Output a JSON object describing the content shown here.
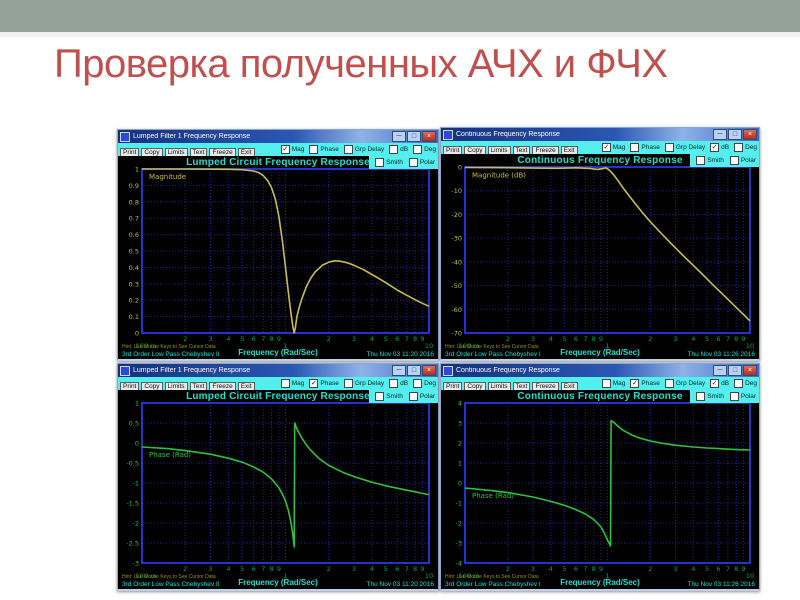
{
  "slide": {
    "title": "Проверка полученных АЧХ и ФЧХ",
    "header_color": "#93a299",
    "title_color": "#c0504d"
  },
  "toolbar_buttons": [
    "Print",
    "Copy",
    "Limits",
    "Text",
    "Freeze",
    "Exit"
  ],
  "checkbox_row1": [
    "Mag",
    "Phase",
    "Grp Delay",
    "dB",
    "Deg"
  ],
  "checkbox_row2": [
    "Smith",
    "Polar"
  ],
  "hint": "Hint: Use Mouse Keys to See Cursor Data",
  "xlabel": "Frequency (Rad/Sec)",
  "x_minor_labels": [
    "2",
    "3",
    "4",
    "5",
    "6",
    "7",
    "8",
    "9"
  ],
  "x_major_labels": [
    "100 m",
    "1",
    "10"
  ],
  "colors": {
    "magnitude_trace": "#c9bd4e",
    "phase_trace": "#2ec13a",
    "axis_text": "#00a844",
    "cyan_text": "#1ee0cd",
    "toolbar_bg": "#55eeee",
    "plot_border": "#2233d4",
    "grid": "#2020a8"
  },
  "windows": [
    {
      "window_title": "Lumped Filter 1 Frequency Response",
      "chart_title": "Lumped Circuit Frequency Response",
      "checked": [
        "Mag"
      ],
      "caption": "3rd Order Low Pass Chebyshev II",
      "timestamp": "Thu Nov 03 11:20 2016"
    },
    {
      "window_title": "Continuous Frequency Response",
      "chart_title": "Continuous Frequency Response",
      "checked": [
        "Mag",
        "dB"
      ],
      "caption": "3rd Order Low Pass Chebyshev I",
      "timestamp": "Thu Nov 03 11:26 2016"
    },
    {
      "window_title": "Lumped Filter 1 Frequency Response",
      "chart_title": "Lumped Circuit Frequency Response",
      "checked": [
        "Phase"
      ],
      "caption": "3rd Order Low Pass Chebyshev II",
      "timestamp": "Thu Nov 03 11:20 2016"
    },
    {
      "window_title": "Continuous Frequency Response",
      "chart_title": "Continuous Frequency Response",
      "checked": [
        "Phase",
        "dB"
      ],
      "caption": "3rd Order Low Pass Chebyshev I",
      "timestamp": "Thu Nov 03 11:26 2016"
    }
  ],
  "chart_data": [
    {
      "type": "line",
      "title": "Lumped Circuit Frequency Response",
      "xlabel": "Frequency (Rad/Sec)",
      "xscale": "log",
      "xlim": [
        0.1,
        10
      ],
      "ylim": [
        0,
        1
      ],
      "yticks": [
        1,
        0.9,
        0.8,
        0.7,
        0.6,
        0.5,
        0.4,
        0.3,
        0.2,
        0.1,
        0
      ],
      "ytick_labels": [
        "1",
        "0.9",
        "0.8",
        "0.7",
        "0.6",
        "0.5",
        "0.4",
        "0.3",
        "0.2",
        "0.1",
        "0"
      ],
      "grid": true,
      "series": [
        {
          "name": "Magnitude",
          "color": "#c9bd4e",
          "points": [
            [
              0.1,
              1
            ],
            [
              0.2,
              1
            ],
            [
              0.3,
              0.999
            ],
            [
              0.4,
              0.998
            ],
            [
              0.5,
              0.996
            ],
            [
              0.6,
              0.988
            ],
            [
              0.65,
              0.978
            ],
            [
              0.7,
              0.96
            ],
            [
              0.75,
              0.93
            ],
            [
              0.8,
              0.885
            ],
            [
              0.85,
              0.815
            ],
            [
              0.9,
              0.71
            ],
            [
              0.95,
              0.565
            ],
            [
              1,
              0.4
            ],
            [
              1.05,
              0.24
            ],
            [
              1.1,
              0.1
            ],
            [
              1.13,
              0.03
            ],
            [
              1.15,
              0
            ],
            [
              1.17,
              0.03
            ],
            [
              1.2,
              0.1
            ],
            [
              1.25,
              0.16
            ],
            [
              1.3,
              0.21
            ],
            [
              1.4,
              0.285
            ],
            [
              1.5,
              0.335
            ],
            [
              1.6,
              0.37
            ],
            [
              1.8,
              0.412
            ],
            [
              2,
              0.432
            ],
            [
              2.2,
              0.44
            ],
            [
              2.4,
              0.438
            ],
            [
              2.7,
              0.428
            ],
            [
              3,
              0.413
            ],
            [
              3.5,
              0.386
            ],
            [
              4,
              0.357
            ],
            [
              4.5,
              0.331
            ],
            [
              5,
              0.307
            ],
            [
              6,
              0.262
            ],
            [
              7,
              0.23
            ],
            [
              8,
              0.203
            ],
            [
              9,
              0.181
            ],
            [
              10,
              0.163
            ]
          ]
        }
      ]
    },
    {
      "type": "line",
      "title": "Continuous Frequency Response",
      "xlabel": "Frequency (Rad/Sec)",
      "xscale": "log",
      "xlim": [
        0.1,
        10
      ],
      "ylim": [
        -70,
        0
      ],
      "yticks": [
        0,
        -10,
        -20,
        -30,
        -40,
        -50,
        -60,
        -70
      ],
      "ytick_labels": [
        "0",
        "-10",
        "-20",
        "-30",
        "-40",
        "-50",
        "-60",
        "-70"
      ],
      "grid": true,
      "series": [
        {
          "name": "Magnitude (dB)",
          "color": "#c9bd4e",
          "points": [
            [
              0.1,
              -0.2
            ],
            [
              0.2,
              -0.3
            ],
            [
              0.3,
              -0.45
            ],
            [
              0.45,
              -0.55
            ],
            [
              0.6,
              -0.35
            ],
            [
              0.75,
              -0.6
            ],
            [
              0.85,
              -1
            ],
            [
              0.92,
              -0.7
            ],
            [
              0.97,
              -0.4
            ],
            [
              1,
              -0.7
            ],
            [
              1.05,
              -1.8
            ],
            [
              1.1,
              -3.1
            ],
            [
              1.2,
              -6.2
            ],
            [
              1.3,
              -9.2
            ],
            [
              1.45,
              -12.9
            ],
            [
              1.6,
              -16.2
            ],
            [
              1.8,
              -20
            ],
            [
              2,
              -23.1
            ],
            [
              2.3,
              -27
            ],
            [
              2.6,
              -30.3
            ],
            [
              3,
              -34.1
            ],
            [
              3.5,
              -38.1
            ],
            [
              4,
              -41.5
            ],
            [
              4.5,
              -44.5
            ],
            [
              5,
              -47.2
            ],
            [
              5.5,
              -49.7
            ],
            [
              6,
              -51.9
            ],
            [
              7,
              -55.8
            ],
            [
              8,
              -59.2
            ],
            [
              9,
              -62.2
            ],
            [
              10,
              -64.9
            ]
          ]
        }
      ]
    },
    {
      "type": "line",
      "title": "Lumped Circuit Frequency Response",
      "xlabel": "Frequency (Rad/Sec)",
      "xscale": "log",
      "xlim": [
        0.1,
        10
      ],
      "ylim": [
        -3,
        1
      ],
      "yticks": [
        1,
        0.5,
        0,
        -0.5,
        -1,
        -1.5,
        -2,
        -2.5,
        -3
      ],
      "ytick_labels": [
        "1",
        "0.5",
        "0",
        "-0.5",
        "-1",
        "-1.5",
        "-2",
        "-2.5",
        "-3"
      ],
      "grid": true,
      "series": [
        {
          "name": "Phase (Rad)",
          "color": "#2ec13a",
          "points": [
            [
              0.1,
              -0.1
            ],
            [
              0.15,
              -0.14
            ],
            [
              0.2,
              -0.19
            ],
            [
              0.3,
              -0.28
            ],
            [
              0.4,
              -0.38
            ],
            [
              0.5,
              -0.48
            ],
            [
              0.6,
              -0.6
            ],
            [
              0.7,
              -0.73
            ],
            [
              0.8,
              -0.9
            ],
            [
              0.9,
              -1.12
            ],
            [
              0.95,
              -1.27
            ],
            [
              1,
              -1.45
            ],
            [
              1.05,
              -1.7
            ],
            [
              1.1,
              -2.05
            ],
            [
              1.13,
              -2.35
            ],
            [
              1.15,
              -2.6
            ],
            [
              1.16,
              0.5
            ],
            [
              1.2,
              0.35
            ],
            [
              1.3,
              0.12
            ],
            [
              1.4,
              -0.05
            ],
            [
              1.5,
              -0.18
            ],
            [
              1.7,
              -0.38
            ],
            [
              2,
              -0.56
            ],
            [
              2.5,
              -0.73
            ],
            [
              3,
              -0.84
            ],
            [
              4,
              -0.98
            ],
            [
              5,
              -1.07
            ],
            [
              6,
              -1.13
            ],
            [
              7,
              -1.18
            ],
            [
              8,
              -1.22
            ],
            [
              9,
              -1.26
            ],
            [
              10,
              -1.29
            ]
          ]
        }
      ]
    },
    {
      "type": "line",
      "title": "Continuous Frequency Response",
      "xlabel": "Frequency (Rad/Sec)",
      "xscale": "log",
      "xlim": [
        0.1,
        10
      ],
      "ylim": [
        -4,
        4
      ],
      "yticks": [
        4,
        3,
        2,
        1,
        0,
        -1,
        -2,
        -3,
        -4
      ],
      "ytick_labels": [
        "4",
        "3",
        "2",
        "1",
        "0",
        "-1",
        "-2",
        "-3",
        "-4"
      ],
      "grid": true,
      "series": [
        {
          "name": "Phase (Rad)",
          "color": "#2ec13a",
          "points": [
            [
              0.1,
              -0.25
            ],
            [
              0.15,
              -0.37
            ],
            [
              0.2,
              -0.48
            ],
            [
              0.3,
              -0.7
            ],
            [
              0.4,
              -0.92
            ],
            [
              0.5,
              -1.12
            ],
            [
              0.6,
              -1.33
            ],
            [
              0.7,
              -1.55
            ],
            [
              0.8,
              -1.82
            ],
            [
              0.9,
              -2.2
            ],
            [
              0.95,
              -2.5
            ],
            [
              1,
              -2.85
            ],
            [
              1.05,
              -3.15
            ],
            [
              1.06,
              3.12
            ],
            [
              1.1,
              3.05
            ],
            [
              1.2,
              2.8
            ],
            [
              1.3,
              2.62
            ],
            [
              1.5,
              2.38
            ],
            [
              1.7,
              2.24
            ],
            [
              2,
              2.1
            ],
            [
              2.5,
              1.97
            ],
            [
              3,
              1.89
            ],
            [
              4,
              1.8
            ],
            [
              5,
              1.75
            ],
            [
              6,
              1.72
            ],
            [
              7,
              1.69
            ],
            [
              8,
              1.67
            ],
            [
              9,
              1.66
            ],
            [
              10,
              1.65
            ]
          ]
        }
      ]
    }
  ]
}
